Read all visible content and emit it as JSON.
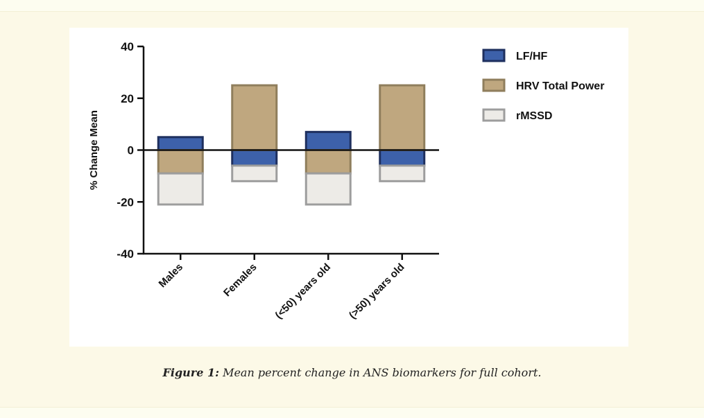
{
  "caption": {
    "label": "Figure 1:",
    "text": "Mean percent change in ANS biomarkers for full cohort."
  },
  "chart_data": {
    "type": "bar",
    "stacked": "diverging",
    "categories": [
      "Males",
      "Females",
      "(<50) years old",
      "(>50) years old"
    ],
    "ylabel": "% Change Mean",
    "xlabel": "",
    "ylim": [
      -40,
      40
    ],
    "yticks": [
      40,
      20,
      0,
      -20,
      -40
    ],
    "grid": false,
    "legend_position": "right",
    "series": [
      {
        "name": "LF/HF",
        "color": "#3d61aa",
        "stroke": "#1e2f5e",
        "values": [
          5,
          -6,
          7,
          -6
        ]
      },
      {
        "name": "HRV Total Power",
        "color": "#bfa77f",
        "stroke": "#8f7e5c",
        "values": [
          -9,
          25,
          -9,
          25
        ]
      },
      {
        "name": "rMSSD",
        "color": "#edebe7",
        "stroke": "#9d9d9d",
        "values": [
          -12,
          -6,
          -12,
          -6
        ]
      }
    ]
  }
}
